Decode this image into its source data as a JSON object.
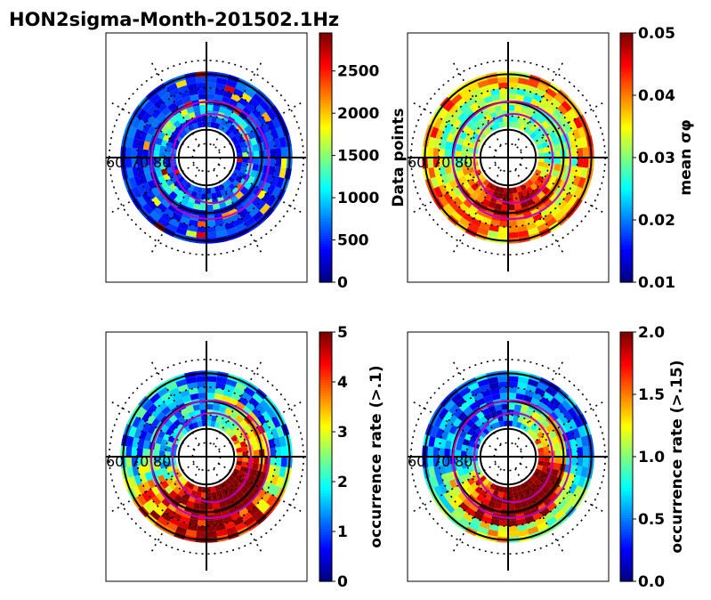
{
  "figure_title": "HON2sigma-Month-201502.1Hz",
  "chart_data": [
    {
      "type": "heatmap",
      "projection": "polar-mlat",
      "title": "",
      "colorbar_label": "Data points",
      "colormap": "jet",
      "vmin": 0,
      "vmax": 2950,
      "colorbar_ticks": [
        0,
        500,
        1000,
        1500,
        2000,
        2500
      ],
      "colorbar_tick_labels": [
        "0",
        "500",
        "1000",
        "1500",
        "2000",
        "2500"
      ],
      "lat_labels": [
        "60",
        "70",
        "80"
      ],
      "pattern": "counts",
      "oval_color": "#c000c0"
    },
    {
      "type": "heatmap",
      "projection": "polar-mlat",
      "title": "",
      "colorbar_label": "mean σφ",
      "colormap": "jet",
      "vmin": 0.01,
      "vmax": 0.05,
      "colorbar_ticks": [
        0.01,
        0.02,
        0.03,
        0.04,
        0.05
      ],
      "colorbar_tick_labels": [
        "0.01",
        "0.02",
        "0.03",
        "0.04",
        "0.05"
      ],
      "lat_labels": [
        "60",
        "70",
        "80"
      ],
      "pattern": "mean",
      "oval_color": "#c000c0"
    },
    {
      "type": "heatmap",
      "projection": "polar-mlat",
      "title": "",
      "colorbar_label": "occurrence rate (>.1)",
      "colormap": "jet",
      "vmin": 0,
      "vmax": 5,
      "colorbar_ticks": [
        0,
        1,
        2,
        3,
        4,
        5
      ],
      "colorbar_tick_labels": [
        "0",
        "1",
        "2",
        "3",
        "4",
        "5"
      ],
      "lat_labels": [
        "60",
        "70",
        "80"
      ],
      "pattern": "occ",
      "oval_color": "#c000c0"
    },
    {
      "type": "heatmap",
      "projection": "polar-mlat",
      "title": "",
      "colorbar_label": "occurrence rate (>.15)",
      "colormap": "jet",
      "vmin": 0.0,
      "vmax": 2.0,
      "colorbar_ticks": [
        0.0,
        0.5,
        1.0,
        1.5,
        2.0
      ],
      "colorbar_tick_labels": [
        "0.0",
        "0.5",
        "1.0",
        "1.5",
        "2.0"
      ],
      "lat_labels": [
        "60",
        "70",
        "80"
      ],
      "pattern": "occ2",
      "oval_color": "#c000c0"
    }
  ]
}
